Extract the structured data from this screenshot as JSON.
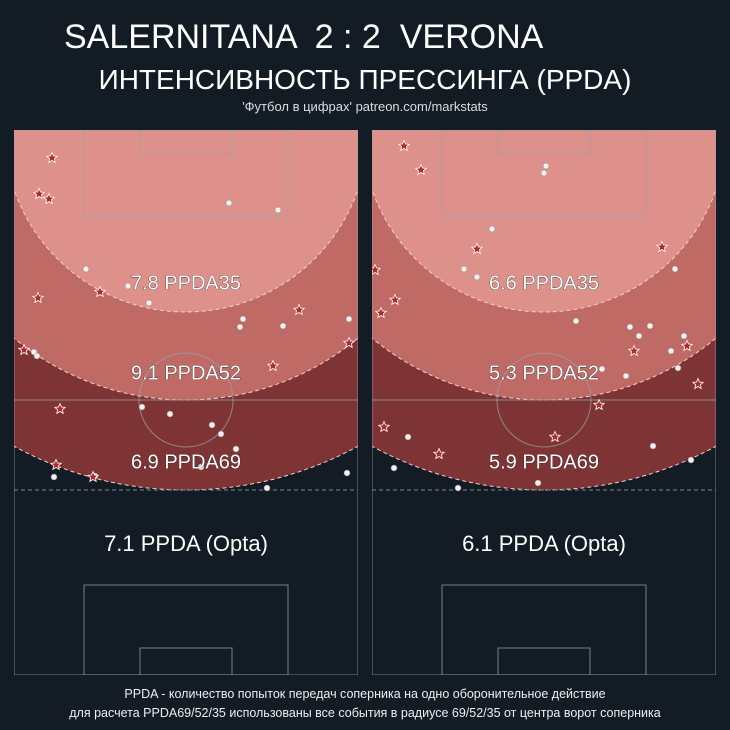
{
  "header": {
    "title": "SALERNITANA  2 : 2  VERONA",
    "subtitle": "ИНТЕНСИВНОСТЬ ПРЕССИНГА (PPDA)",
    "credit": "'Футбол в цифрах' patreon.com/markstats"
  },
  "panels": [
    {
      "zones": [
        "7.8 PPDA35",
        "9.1 PPDA52",
        "6.9 PPDA69"
      ],
      "opta": "7.1 PPDA (Opta)"
    },
    {
      "zones": [
        "6.6 PPDA35",
        "5.3 PPDA52",
        "5.9 PPDA69"
      ],
      "opta": "6.1 PPDA (Opta)"
    }
  ],
  "footer": [
    "PPDA - количество попыток передач соперника на одно оборонительное действие",
    "для расчета PPDA69/52/35 использованы все события в радиусе 69/52/35 от центра ворот соперника"
  ]
}
